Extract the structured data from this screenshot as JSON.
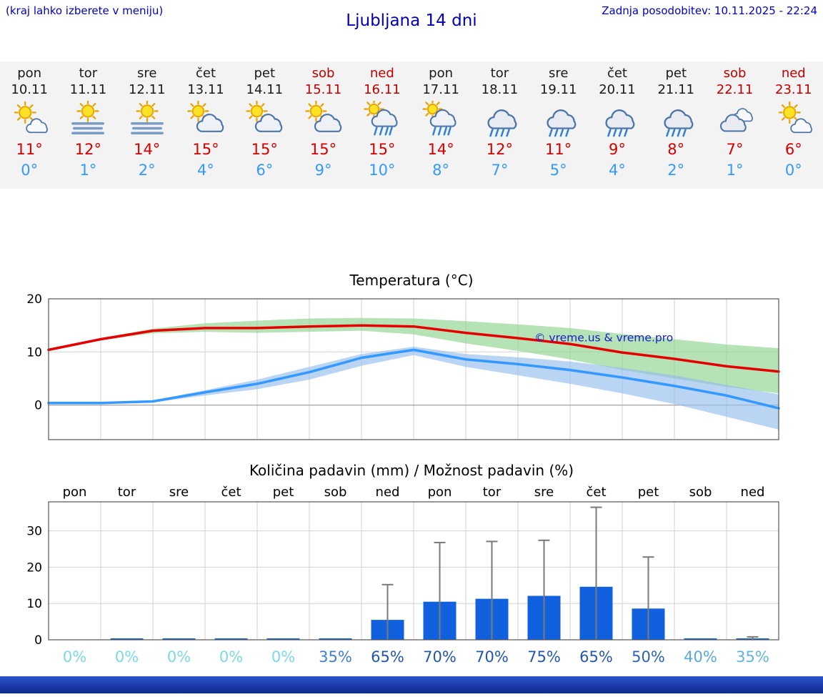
{
  "header": {
    "hint": "(kraj lahko izberete v meniju)",
    "title": "Ljubljana 14 dni",
    "updated": "Zadnja posodobitev: 10.11.2025 - 22:24"
  },
  "watermark": "© vreme.us & vreme.pro",
  "colors": {
    "link_blue": "#0000cc",
    "high_red": "#d40000",
    "low_blue": "#3399ff",
    "bar_blue": "#1160dd",
    "band_green": "#8fd48f",
    "band_blue": "#95bdee"
  },
  "forecast": {
    "days": [
      {
        "day": "pon",
        "date": "10.11",
        "icon": "partly-sunny",
        "high": "11°",
        "low": "0°",
        "holiday": false
      },
      {
        "day": "tor",
        "date": "11.11",
        "icon": "sun-fog",
        "high": "12°",
        "low": "1°",
        "holiday": false
      },
      {
        "day": "sre",
        "date": "12.11",
        "icon": "sun-fog",
        "high": "14°",
        "low": "2°",
        "holiday": false
      },
      {
        "day": "čet",
        "date": "13.11",
        "icon": "partly-cloudy",
        "high": "15°",
        "low": "4°",
        "holiday": false
      },
      {
        "day": "pet",
        "date": "14.11",
        "icon": "partly-cloudy",
        "high": "15°",
        "low": "6°",
        "holiday": false
      },
      {
        "day": "sob",
        "date": "15.11",
        "icon": "partly-cloudy",
        "high": "15°",
        "low": "9°",
        "holiday": true
      },
      {
        "day": "ned",
        "date": "16.11",
        "icon": "sun-rain",
        "high": "15°",
        "low": "10°",
        "holiday": true
      },
      {
        "day": "pon",
        "date": "17.11",
        "icon": "sun-rain",
        "high": "14°",
        "low": "8°",
        "holiday": false
      },
      {
        "day": "tor",
        "date": "18.11",
        "icon": "rain",
        "high": "12°",
        "low": "7°",
        "holiday": false
      },
      {
        "day": "sre",
        "date": "19.11",
        "icon": "rain",
        "high": "11°",
        "low": "5°",
        "holiday": false
      },
      {
        "day": "čet",
        "date": "20.11",
        "icon": "rain",
        "high": "9°",
        "low": "4°",
        "holiday": false
      },
      {
        "day": "pet",
        "date": "21.11",
        "icon": "rain",
        "high": "8°",
        "low": "2°",
        "holiday": false
      },
      {
        "day": "sob",
        "date": "22.11",
        "icon": "cloudy",
        "high": "7°",
        "low": "1°",
        "holiday": true
      },
      {
        "day": "ned",
        "date": "23.11",
        "icon": "partly-sunny",
        "high": "6°",
        "low": "0°",
        "holiday": true
      }
    ]
  },
  "chart_data": [
    {
      "type": "line",
      "title": "Temperatura (°C)",
      "xlabel": "",
      "ylabel": "",
      "yticks": [
        0,
        10,
        20
      ],
      "ylim": [
        -6.5,
        20
      ],
      "x_days": [
        "pon",
        "tor",
        "sre",
        "čet",
        "pet",
        "sob",
        "ned",
        "pon",
        "tor",
        "sre",
        "čet",
        "pet",
        "sob",
        "ned"
      ],
      "grid": true,
      "series": [
        {
          "name": "max",
          "color": "#e60000",
          "values": [
            10.4,
            12.4,
            14.0,
            14.5,
            14.5,
            14.8,
            15.0,
            14.8,
            13.6,
            12.6,
            11.5,
            9.9,
            8.7,
            7.3,
            6.3
          ]
        },
        {
          "name": "min",
          "color": "#3399ff",
          "values": [
            0.4,
            0.4,
            0.7,
            2.4,
            4.0,
            6.2,
            8.9,
            10.4,
            8.6,
            7.7,
            6.6,
            5.2,
            3.6,
            1.8,
            -0.6
          ]
        }
      ],
      "bands": [
        {
          "name": "max-range",
          "color": "#8fd48f",
          "upper": [
            10.4,
            12.6,
            14.4,
            15.4,
            15.9,
            16.3,
            16.4,
            16.3,
            15.8,
            15.2,
            14.5,
            13.4,
            12.4,
            11.4,
            10.7
          ],
          "lower": [
            10.4,
            12.2,
            13.5,
            13.8,
            13.6,
            13.8,
            14.0,
            13.3,
            11.6,
            10.2,
            8.6,
            6.6,
            5.0,
            3.4,
            2.2
          ]
        },
        {
          "name": "min-range",
          "color": "#95bdee",
          "upper": [
            0.4,
            0.5,
            0.9,
            2.8,
            4.8,
            7.2,
            9.6,
            11.0,
            9.6,
            9.0,
            8.2,
            7.0,
            5.6,
            3.8,
            2.0
          ],
          "lower": [
            0.4,
            0.3,
            0.5,
            1.8,
            3.0,
            4.8,
            7.4,
            9.4,
            7.2,
            5.6,
            4.0,
            2.2,
            0.2,
            -2.2,
            -4.6
          ]
        }
      ]
    },
    {
      "type": "bar",
      "title": "Količina padavin (mm) / Možnost padavin (%)",
      "xlabel": "",
      "ylabel": "",
      "yticks": [
        0,
        10,
        20,
        30
      ],
      "ylim": [
        0,
        38
      ],
      "grid": true,
      "categories": [
        "pon",
        "tor",
        "sre",
        "čet",
        "pet",
        "sob",
        "ned",
        "pon",
        "tor",
        "sre",
        "čet",
        "pet",
        "sob",
        "ned"
      ],
      "values": [
        0,
        0.15,
        0.15,
        0.15,
        0.15,
        0.25,
        5.5,
        10.5,
        11.3,
        12.1,
        14.6,
        8.6,
        0.15,
        0.25
      ],
      "whisker_max": [
        0,
        0,
        0,
        0,
        0,
        0,
        15.2,
        26.8,
        27.1,
        27.4,
        36.5,
        22.8,
        0,
        0.8
      ],
      "probabilities": [
        {
          "label": "0%",
          "color": "#7cd9e6"
        },
        {
          "label": "0%",
          "color": "#7cd9e6"
        },
        {
          "label": "0%",
          "color": "#7cd9e6"
        },
        {
          "label": "0%",
          "color": "#7cd9e6"
        },
        {
          "label": "0%",
          "color": "#7cd9e6"
        },
        {
          "label": "35%",
          "color": "#3f7fd0"
        },
        {
          "label": "65%",
          "color": "#2456ae"
        },
        {
          "label": "70%",
          "color": "#2456ae"
        },
        {
          "label": "70%",
          "color": "#2456ae"
        },
        {
          "label": "75%",
          "color": "#2456ae"
        },
        {
          "label": "65%",
          "color": "#2456ae"
        },
        {
          "label": "50%",
          "color": "#2b63b8"
        },
        {
          "label": "40%",
          "color": "#5aa8dc"
        },
        {
          "label": "35%",
          "color": "#63b4dc"
        }
      ]
    }
  ]
}
